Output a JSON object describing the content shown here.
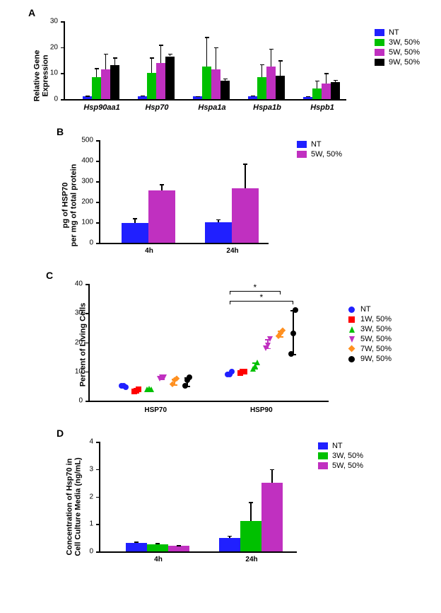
{
  "colors": {
    "blue": "#2020ff",
    "green": "#00c000",
    "magenta": "#c030c0",
    "black": "#000000",
    "red": "#ff0000",
    "orange": "#ff9020"
  },
  "panelA": {
    "label": "A",
    "ylabel": "Relative Gene\nExpression",
    "ylim": [
      0,
      30
    ],
    "ytick_step": 10,
    "groups": [
      "Hsp90aa1",
      "Hsp70",
      "Hspa1a",
      "Hspa1b",
      "Hspb1"
    ],
    "series": [
      {
        "name": "NT",
        "color": "#2020ff",
        "values": [
          1.0,
          1.2,
          1.0,
          1.1,
          0.9
        ],
        "err": [
          0.3,
          0.3,
          0.2,
          0.3,
          0.2
        ]
      },
      {
        "name": "3W, 50%",
        "color": "#00c000",
        "values": [
          8.5,
          10.0,
          12.5,
          8.5,
          4.2
        ],
        "err": [
          3.5,
          6.0,
          11.5,
          5.0,
          3.0
        ]
      },
      {
        "name": "5W, 50%",
        "color": "#c030c0",
        "values": [
          11.5,
          14.0,
          11.5,
          12.5,
          6.0
        ],
        "err": [
          6.0,
          7.0,
          8.5,
          7.0,
          4.0
        ]
      },
      {
        "name": "9W, 50%",
        "color": "#000000",
        "values": [
          13.0,
          16.5,
          7.0,
          9.0,
          6.5
        ],
        "err": [
          3.0,
          1.0,
          1.0,
          6.0,
          1.0
        ]
      }
    ],
    "legend": [
      "NT",
      "3W, 50%",
      "5W, 50%",
      "9W, 50%"
    ]
  },
  "panelB": {
    "label": "B",
    "ylabel": "pg of HSP70\nper mg of total protein",
    "ylim": [
      0,
      500
    ],
    "ytick_step": 100,
    "groups": [
      "4h",
      "24h"
    ],
    "series": [
      {
        "name": "NT",
        "color": "#2020ff",
        "values": [
          95,
          100
        ],
        "err": [
          25,
          15
        ]
      },
      {
        "name": "5W, 50%",
        "color": "#c030c0",
        "values": [
          255,
          265
        ],
        "err": [
          30,
          120
        ]
      }
    ],
    "legend": [
      "NT",
      "5W, 50%"
    ]
  },
  "panelC": {
    "label": "C",
    "ylabel": "Percent of Living Cells",
    "ylim": [
      0,
      40
    ],
    "ytick_step": 10,
    "groups": [
      "HSP70",
      "HSP90"
    ],
    "series": [
      {
        "name": "NT",
        "color": "#2020ff",
        "shape": "circle",
        "hsp70": [
          5,
          5,
          4.5
        ],
        "hsp90": [
          9,
          9,
          10
        ]
      },
      {
        "name": "1W, 50%",
        "color": "#ff0000",
        "shape": "square",
        "hsp70": [
          3.2,
          3.5,
          3.8
        ],
        "hsp90": [
          9.5,
          10,
          10
        ]
      },
      {
        "name": "3W, 50%",
        "color": "#00c000",
        "shape": "triangle",
        "hsp70": [
          4,
          4.2,
          4
        ],
        "hsp90": [
          11,
          12,
          13
        ]
      },
      {
        "name": "5W, 50%",
        "color": "#c030c0",
        "shape": "tri-down",
        "hsp70": [
          7.5,
          8,
          8
        ],
        "hsp90": [
          18,
          19,
          21
        ]
      },
      {
        "name": "7W, 50%",
        "color": "#ff9020",
        "shape": "diamond",
        "hsp70": [
          5.5,
          7,
          7.5
        ],
        "hsp90": [
          22,
          23,
          24
        ]
      },
      {
        "name": "9W, 50%",
        "color": "#000000",
        "shape": "circle",
        "hsp70": [
          5,
          7,
          8
        ],
        "hsp90": [
          16,
          23,
          31
        ]
      }
    ],
    "legend": [
      "NT",
      "1W, 50%",
      "3W, 50%",
      "5W, 50%",
      "7W, 50%",
      "9W, 50%"
    ],
    "sig": [
      {
        "from": "NT",
        "to": "7W, 50%",
        "label": "*"
      },
      {
        "from": "NT",
        "to": "9W, 50%",
        "label": "*"
      }
    ]
  },
  "panelD": {
    "label": "D",
    "ylabel": "Concentration of Hsp70 in\nCell Culture Media (ng/mL)",
    "ylim": [
      0,
      4
    ],
    "ytick_step": 1,
    "groups": [
      "4h",
      "24h"
    ],
    "series": [
      {
        "name": "NT",
        "color": "#2020ff",
        "values": [
          0.3,
          0.5
        ],
        "err": [
          0.05,
          0.08
        ]
      },
      {
        "name": "3W, 50%",
        "color": "#00c000",
        "values": [
          0.25,
          1.1
        ],
        "err": [
          0.05,
          0.7
        ]
      },
      {
        "name": "5W, 50%",
        "color": "#c030c0",
        "values": [
          0.2,
          2.5
        ],
        "err": [
          0.02,
          0.5
        ]
      }
    ],
    "legend": [
      "NT",
      "3W, 50%",
      "5W, 50%"
    ]
  }
}
